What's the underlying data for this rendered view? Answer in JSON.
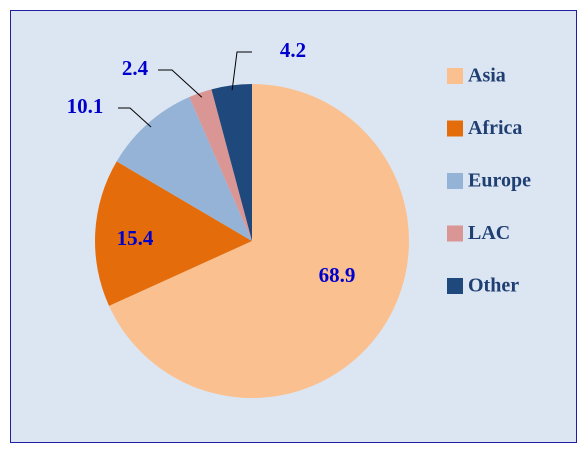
{
  "chart_data": {
    "type": "pie",
    "categories": [
      "Asia",
      "Africa",
      "Europe",
      "LAC",
      "Other"
    ],
    "values": [
      68.9,
      15.4,
      10.1,
      2.4,
      4.2
    ],
    "colors": [
      "#fac090",
      "#e46c0a",
      "#95b3d7",
      "#d99694",
      "#1f497d"
    ],
    "legend": "right"
  }
}
